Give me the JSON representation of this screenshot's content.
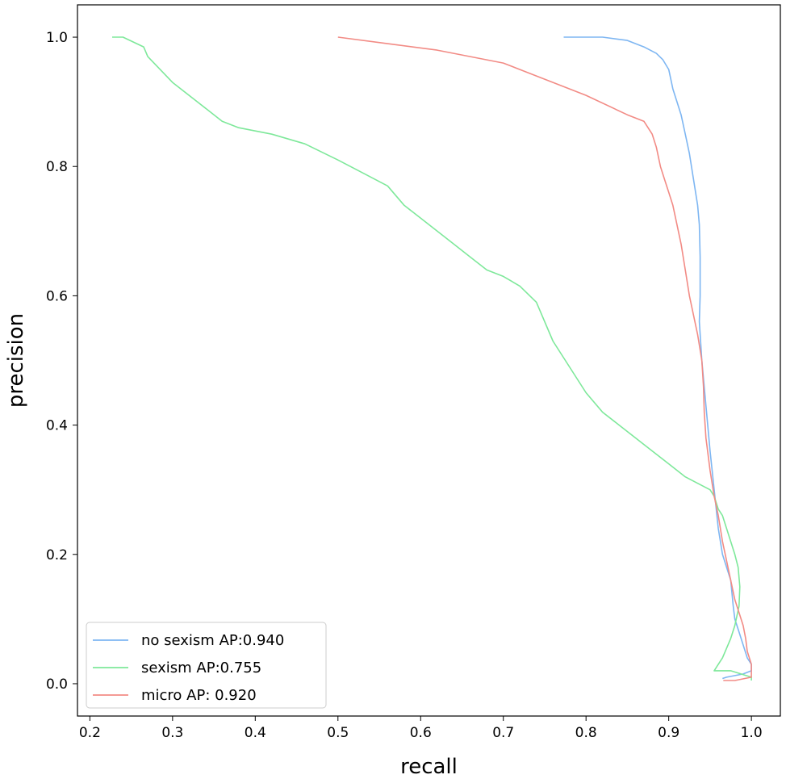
{
  "chart_data": {
    "type": "line",
    "xlabel": "recall",
    "ylabel": "precision",
    "xlim": [
      0.185,
      1.035
    ],
    "ylim": [
      -0.05,
      1.05
    ],
    "xticks": [
      0.2,
      0.3,
      0.4,
      0.5,
      0.6,
      0.7,
      0.8,
      0.9,
      1.0
    ],
    "xtick_labels": [
      "0.2",
      "0.3",
      "0.4",
      "0.5",
      "0.6",
      "0.7",
      "0.8",
      "0.9",
      "1.0"
    ],
    "yticks": [
      0.0,
      0.2,
      0.4,
      0.6,
      0.8,
      1.0
    ],
    "ytick_labels": [
      "0.0",
      "0.2",
      "0.4",
      "0.6",
      "0.8",
      "1.0"
    ],
    "grid": false,
    "legend_position": "lower-left",
    "series": [
      {
        "name": "no sexism AP:0.940",
        "color": "#7eb6f2",
        "x": [
          0.773,
          0.82,
          0.85,
          0.87,
          0.885,
          0.893,
          0.9,
          0.905,
          0.91,
          0.915,
          0.92,
          0.925,
          0.93,
          0.935,
          0.937,
          0.938,
          0.938,
          0.937,
          0.94,
          0.945,
          0.95,
          0.955,
          0.96,
          0.965,
          0.97,
          0.975,
          0.978,
          0.98,
          0.985,
          0.99,
          0.995,
          1.0,
          1.0,
          0.99,
          0.97,
          0.965
        ],
        "y": [
          1.0,
          1.0,
          0.995,
          0.985,
          0.975,
          0.965,
          0.95,
          0.92,
          0.9,
          0.88,
          0.85,
          0.82,
          0.78,
          0.74,
          0.71,
          0.66,
          0.6,
          0.56,
          0.5,
          0.43,
          0.36,
          0.3,
          0.24,
          0.2,
          0.18,
          0.16,
          0.12,
          0.1,
          0.08,
          0.06,
          0.04,
          0.03,
          0.02,
          0.015,
          0.01,
          0.008
        ]
      },
      {
        "name": "sexism AP:0.755",
        "color": "#7ee89a",
        "x": [
          0.227,
          0.24,
          0.265,
          0.27,
          0.3,
          0.36,
          0.38,
          0.42,
          0.46,
          0.5,
          0.53,
          0.56,
          0.58,
          0.6,
          0.64,
          0.66,
          0.68,
          0.7,
          0.72,
          0.74,
          0.76,
          0.78,
          0.8,
          0.82,
          0.84,
          0.86,
          0.87,
          0.9,
          0.92,
          0.935,
          0.95,
          0.955,
          0.96,
          0.965,
          0.97,
          0.975,
          0.98,
          0.984,
          0.986,
          0.985,
          0.98,
          0.975,
          0.97,
          0.965,
          0.96,
          0.955,
          0.975,
          1.0,
          1.0
        ],
        "y": [
          1.0,
          1.0,
          0.985,
          0.97,
          0.93,
          0.87,
          0.86,
          0.85,
          0.835,
          0.81,
          0.79,
          0.77,
          0.74,
          0.72,
          0.68,
          0.66,
          0.64,
          0.63,
          0.615,
          0.59,
          0.53,
          0.49,
          0.45,
          0.42,
          0.4,
          0.38,
          0.37,
          0.34,
          0.32,
          0.31,
          0.3,
          0.29,
          0.27,
          0.26,
          0.24,
          0.22,
          0.2,
          0.18,
          0.15,
          0.12,
          0.09,
          0.07,
          0.055,
          0.04,
          0.03,
          0.02,
          0.02,
          0.01,
          0.005
        ]
      },
      {
        "name": "micro AP: 0.920",
        "color": "#f28b85",
        "x": [
          0.5,
          0.56,
          0.62,
          0.66,
          0.7,
          0.72,
          0.76,
          0.8,
          0.85,
          0.87,
          0.88,
          0.885,
          0.89,
          0.895,
          0.9,
          0.905,
          0.91,
          0.915,
          0.92,
          0.925,
          0.93,
          0.935,
          0.94,
          0.942,
          0.943,
          0.945,
          0.95,
          0.955,
          0.96,
          0.965,
          0.97,
          0.975,
          0.98,
          0.985,
          0.99,
          0.993,
          0.995,
          1.0,
          1.0,
          0.98,
          0.966
        ],
        "y": [
          1.0,
          0.99,
          0.98,
          0.97,
          0.96,
          0.95,
          0.93,
          0.91,
          0.88,
          0.87,
          0.85,
          0.83,
          0.8,
          0.78,
          0.76,
          0.74,
          0.71,
          0.68,
          0.64,
          0.6,
          0.57,
          0.54,
          0.5,
          0.46,
          0.42,
          0.38,
          0.33,
          0.29,
          0.26,
          0.22,
          0.19,
          0.16,
          0.13,
          0.11,
          0.09,
          0.07,
          0.05,
          0.03,
          0.01,
          0.005,
          0.005
        ]
      }
    ]
  }
}
